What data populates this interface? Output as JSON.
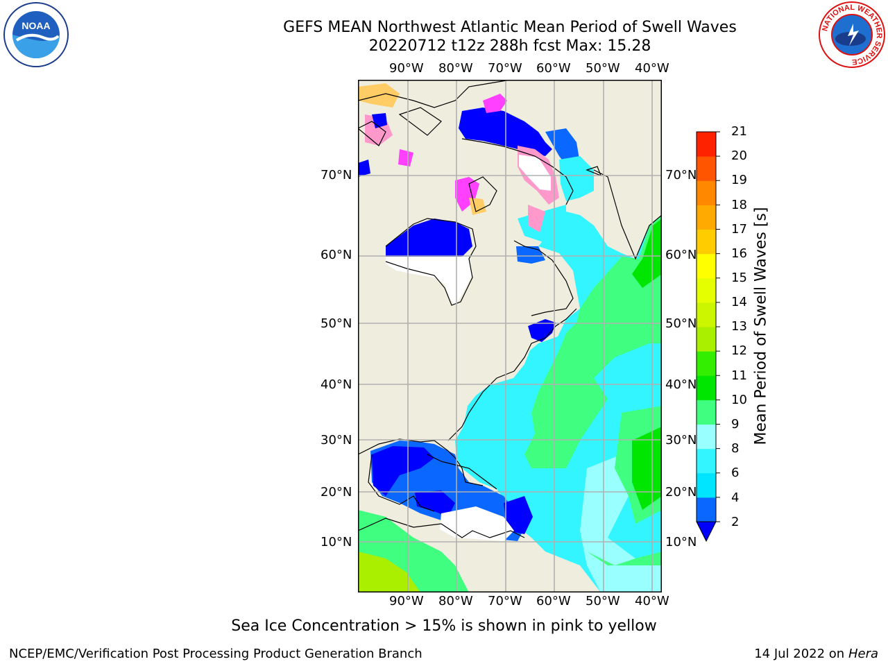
{
  "title": {
    "line1": "GEFS MEAN Northwest Atlantic Mean Period of Swell Waves",
    "line2": "20220712 t12z 288h fcst   Max: 15.28"
  },
  "map": {
    "lon_labels": [
      "90°W",
      "80°W",
      "70°W",
      "60°W",
      "50°W",
      "40°W"
    ],
    "lat_labels": [
      "70°N",
      "60°N",
      "50°N",
      "40°N",
      "30°N",
      "20°N",
      "10°N"
    ],
    "land_color": "#efedde",
    "ice_colors": [
      "#ff40ff",
      "#ff99cc",
      "#ffcc66",
      "#ffff99"
    ]
  },
  "colorbar": {
    "label": "Mean Period of Swell Waves [s]",
    "ticks": [
      "2",
      "4",
      "6",
      "8",
      "9",
      "10",
      "11",
      "12",
      "13",
      "14",
      "15",
      "16",
      "17",
      "18",
      "19",
      "20",
      "21"
    ],
    "colors": [
      "#0a67ff",
      "#00e5ff",
      "#33f5ff",
      "#99ffff",
      "#40ff80",
      "#00e600",
      "#33ee00",
      "#aaee00",
      "#ccf500",
      "#e5ff00",
      "#ffff00",
      "#ffcc00",
      "#ffaa00",
      "#ff8800",
      "#ff5500",
      "#ff2200"
    ],
    "under_color": "#0000ff"
  },
  "note": "Sea Ice Concentration > 15% is shown in pink to yellow",
  "footer": {
    "left": "NCEP/EMC/Verification Post Processing Product Generation Branch",
    "date": "14 Jul 2022 on",
    "host": "Hera"
  },
  "logos": {
    "noaa_text": "NOAA",
    "nws_ring_text": "NATIONAL WEATHER SERVICE"
  }
}
